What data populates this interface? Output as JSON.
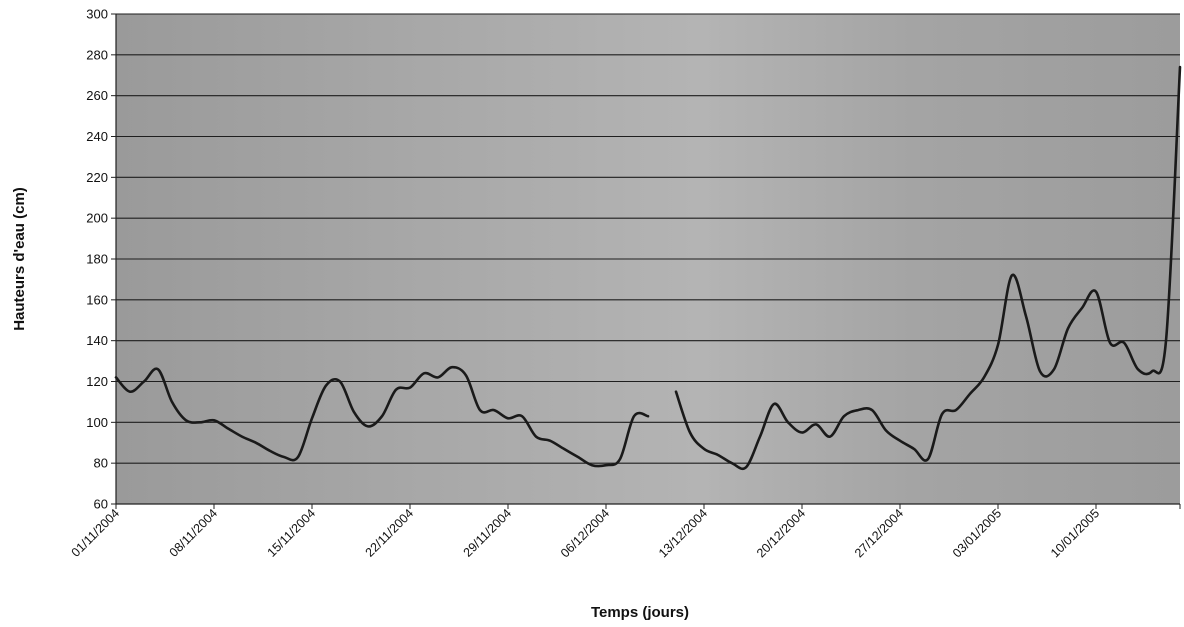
{
  "chart_data": {
    "type": "line",
    "xlabel": "Temps (jours)",
    "ylabel": "Hauteurs d'eau (cm)",
    "ylim": [
      60,
      300
    ],
    "y_ticks": [
      60,
      80,
      100,
      120,
      140,
      160,
      180,
      200,
      220,
      240,
      260,
      280,
      300
    ],
    "x_range": [
      "01/11/2004",
      "16/01/2005"
    ],
    "x_tick_labels": [
      "01/11/2004",
      "08/11/2004",
      "15/11/2004",
      "22/11/2004",
      "29/11/2004",
      "06/12/2004",
      "13/12/2004",
      "20/12/2004",
      "27/12/2004",
      "03/01/2005",
      "10/01/2005"
    ],
    "grid": "horizontal",
    "legend": "none",
    "line_color": "#1a1a1a",
    "plot_background": "#a0a0a0",
    "series": [
      {
        "segments": [
          {
            "x": [
              "01/11/2004",
              "02/11/2004",
              "03/11/2004",
              "04/11/2004",
              "05/11/2004",
              "06/11/2004",
              "07/11/2004",
              "08/11/2004",
              "09/11/2004",
              "10/11/2004",
              "11/11/2004",
              "12/11/2004",
              "13/11/2004",
              "14/11/2004",
              "15/11/2004",
              "16/11/2004",
              "17/11/2004",
              "18/11/2004",
              "19/11/2004",
              "20/11/2004",
              "21/11/2004",
              "22/11/2004",
              "23/11/2004",
              "24/11/2004",
              "25/11/2004",
              "26/11/2004",
              "27/11/2004",
              "28/11/2004",
              "29/11/2004",
              "30/11/2004",
              "01/12/2004",
              "02/12/2004",
              "03/12/2004",
              "04/12/2004",
              "05/12/2004",
              "06/12/2004",
              "07/12/2004",
              "08/12/2004",
              "09/12/2004"
            ],
            "y": [
              122,
              115,
              120,
              126,
              110,
              101,
              100,
              101,
              97,
              93,
              90,
              86,
              83,
              83,
              102,
              118,
              120,
              105,
              98,
              103,
              116,
              117,
              124,
              122,
              127,
              123,
              106,
              106,
              102,
              103,
              93,
              91,
              87,
              83,
              79,
              79,
              82,
              103,
              103
            ]
          },
          {
            "x": [
              "11/12/2004",
              "12/12/2004",
              "13/12/2004",
              "14/12/2004",
              "15/12/2004",
              "16/12/2004",
              "17/12/2004",
              "18/12/2004",
              "19/12/2004",
              "20/12/2004",
              "21/12/2004",
              "22/12/2004",
              "23/12/2004",
              "24/12/2004",
              "25/12/2004",
              "26/12/2004",
              "27/12/2004",
              "28/12/2004",
              "29/12/2004",
              "30/12/2004",
              "31/12/2004",
              "01/01/2005",
              "02/01/2005",
              "03/01/2005",
              "04/01/2005",
              "05/01/2005",
              "06/01/2005",
              "07/01/2005",
              "08/01/2005",
              "09/01/2005",
              "10/01/2005",
              "11/01/2005",
              "12/01/2005",
              "13/01/2005",
              "14/01/2005",
              "15/01/2005",
              "16/01/2005"
            ],
            "y": [
              115,
              95,
              87,
              84,
              80,
              78,
              93,
              109,
              100,
              95,
              99,
              93,
              103,
              106,
              106,
              96,
              91,
              87,
              82,
              104,
              106,
              114,
              122,
              138,
              172,
              152,
              125,
              126,
              146,
              156,
              164,
              139,
              139,
              126,
              125,
              140,
              274
            ]
          }
        ]
      }
    ]
  }
}
